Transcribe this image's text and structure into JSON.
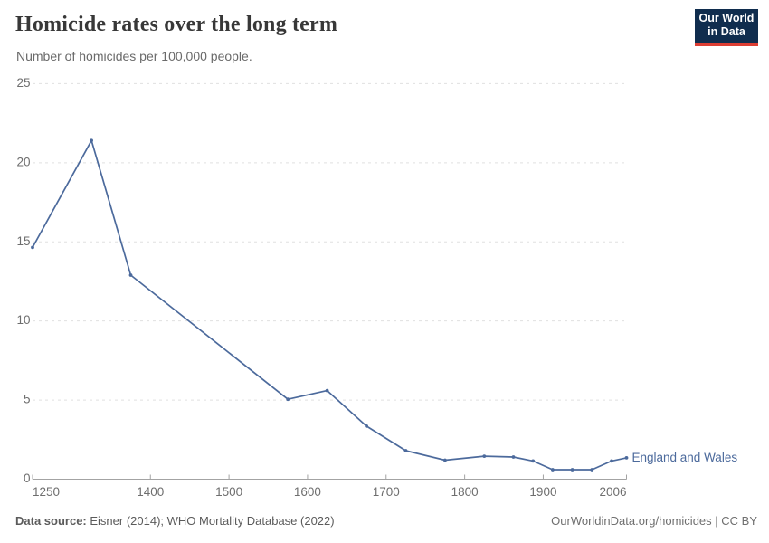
{
  "header": {
    "title": "Homicide rates over the long term",
    "subtitle": "Number of homicides per 100,000 people."
  },
  "logo": {
    "line1": "Our World",
    "line2": "in Data",
    "bg_color": "#102d4e",
    "accent_color": "#dc3d33"
  },
  "footer": {
    "source_label": "Data source:",
    "source_text": "Eisner (2014); WHO Mortality Database (2022)",
    "credit": "OurWorldinData.org/homicides | CC BY"
  },
  "chart_data": {
    "type": "line",
    "title": "Homicide rates over the long term",
    "subtitle": "Number of homicides per 100,000 people.",
    "xlabel": "",
    "ylabel": "",
    "xlim": [
      1250,
      2006
    ],
    "ylim": [
      0,
      25
    ],
    "xticks": [
      1250,
      1400,
      1500,
      1600,
      1700,
      1800,
      1900,
      2006
    ],
    "yticks": [
      0,
      5,
      10,
      15,
      20,
      25
    ],
    "grid": "horizontal-dashed",
    "legend_position": "end-of-line-label",
    "series": [
      {
        "name": "England and Wales",
        "color": "#4c6a9c",
        "x": [
          1250,
          1325,
          1375,
          1575,
          1625,
          1675,
          1725,
          1775,
          1825,
          1862,
          1887,
          1912,
          1937,
          1962,
          1987,
          2006
        ],
        "y": [
          14.65,
          21.4,
          12.9,
          5.05,
          5.6,
          3.35,
          1.8,
          1.2,
          1.45,
          1.4,
          1.15,
          0.6,
          0.6,
          0.6,
          1.15,
          1.35
        ]
      }
    ]
  }
}
